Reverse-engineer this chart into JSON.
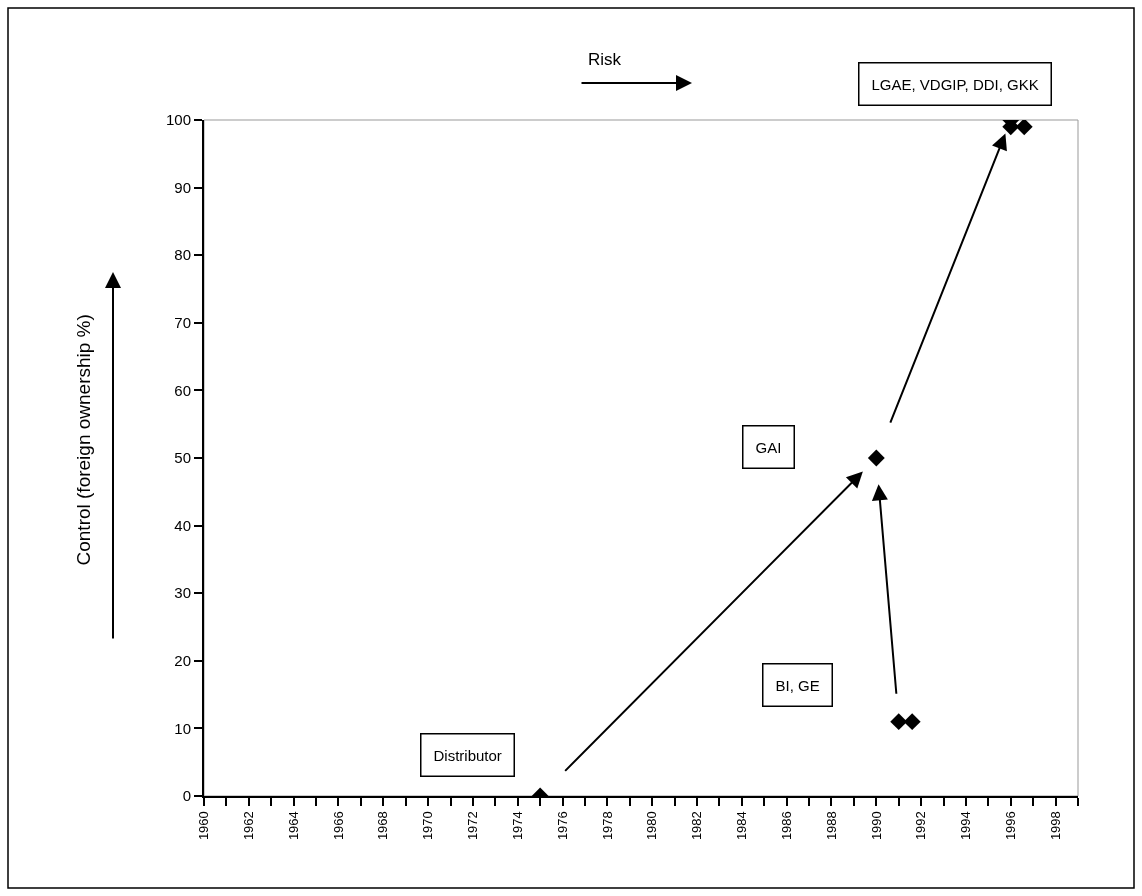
{
  "chart_data": {
    "type": "scatter",
    "xlabel": "Risk",
    "ylabel": "Control (foreign ownership %)",
    "series": [
      {
        "color": "#000000",
        "x": [
          1975,
          1990,
          1991,
          1991.6,
          1996,
          1996,
          1996.6
        ],
        "values": [
          0,
          50,
          11,
          11,
          100,
          99,
          99
        ]
      }
    ],
    "marker": "diamond",
    "grid": false,
    "xlim": [
      1960,
      1999
    ],
    "ylim": [
      0,
      100
    ],
    "xticks": [
      1960,
      {
        "value": 1961,
        "label": null
      },
      1962,
      {
        "value": 1963,
        "label": null
      },
      1964,
      {
        "value": 1965,
        "label": null
      },
      1966,
      {
        "value": 1967,
        "label": null
      },
      1968,
      {
        "value": 1969,
        "label": null
      },
      1970,
      {
        "value": 1971,
        "label": null
      },
      1972,
      {
        "value": 1973,
        "label": null
      },
      1974,
      {
        "value": 1975,
        "label": null
      },
      1976,
      {
        "value": 1977,
        "label": null
      },
      1978,
      {
        "value": 1979,
        "label": null
      },
      1980,
      {
        "value": 1981,
        "label": null
      },
      1982,
      {
        "value": 1983,
        "label": null
      },
      1984,
      {
        "value": 1985,
        "label": null
      },
      1986,
      {
        "value": 1987,
        "label": null
      },
      1988,
      {
        "value": 1989,
        "label": null
      },
      1990,
      {
        "value": 1991,
        "label": null
      },
      1992,
      {
        "value": 1993,
        "label": null
      },
      1994,
      {
        "value": 1995,
        "label": null
      },
      1996,
      {
        "value": 1997,
        "label": null
      },
      1998,
      {
        "value": 1999,
        "label": null
      }
    ],
    "yticks": [
      0,
      10,
      20,
      30,
      40,
      50,
      60,
      70,
      80,
      90,
      100
    ],
    "annotations": [
      "Distributor",
      "GAI",
      "BI, GE",
      "LGAE, VDGIP, DDI, GKK"
    ]
  }
}
